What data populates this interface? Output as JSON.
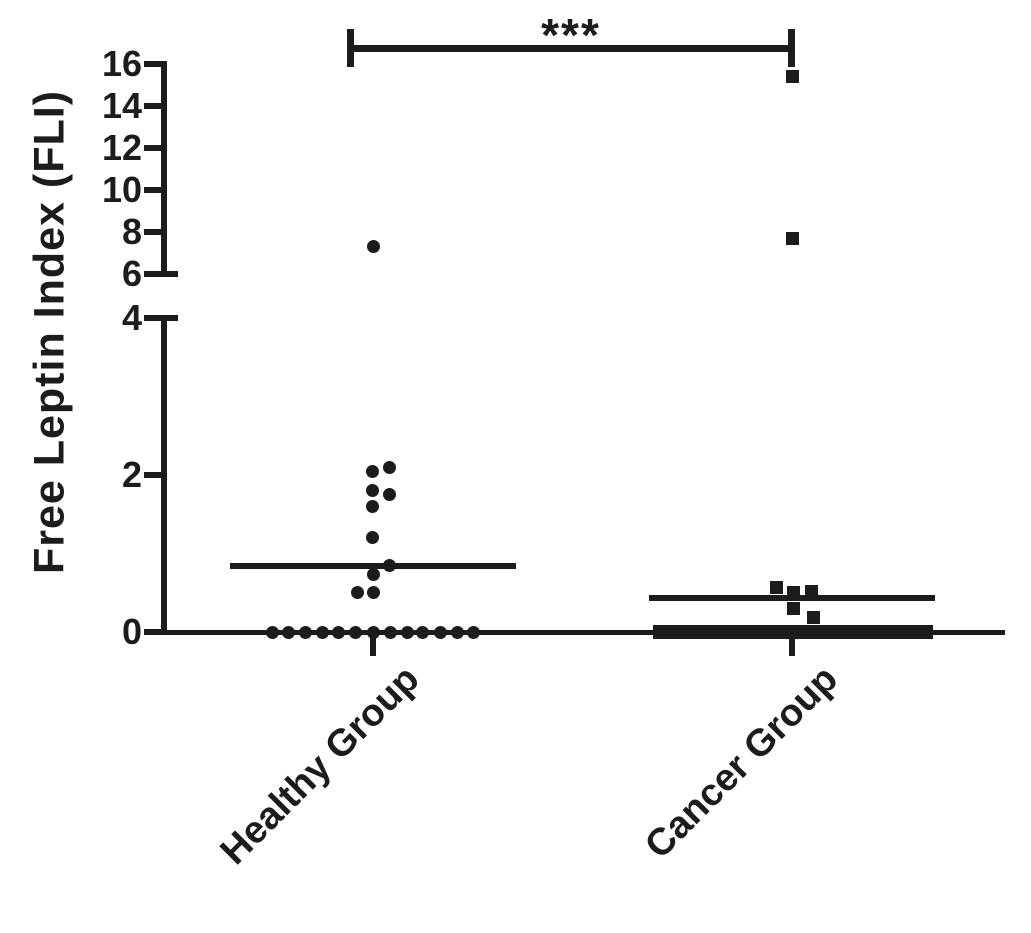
{
  "figure": {
    "background": "#ffffff",
    "ink": "#1c1c1c"
  },
  "chart_data": {
    "type": "scatter",
    "title": "",
    "xlabel": "",
    "ylabel": "Free Leptin Index (FLI)",
    "categories": [
      "Healthy Group",
      "Cancer Group"
    ],
    "y_axis": {
      "upper_ticks": [
        16,
        14,
        12,
        10,
        8,
        6
      ],
      "lower_ticks": [
        4,
        2,
        0
      ],
      "axis_break_between": [
        4,
        6
      ],
      "lower_range": [
        0,
        4
      ],
      "upper_range": [
        6,
        16.3
      ],
      "grid": "off"
    },
    "significance": {
      "label": "***",
      "between": [
        "Healthy Group",
        "Cancer Group"
      ]
    },
    "legend": "none",
    "series": [
      {
        "name": "Healthy Group",
        "marker": "circle",
        "mean_line": 0.84,
        "points": [
          {
            "v": 7.3,
            "dx": 0
          },
          {
            "v": 2.1,
            "dx": 16
          },
          {
            "v": 2.05,
            "dx": -1
          },
          {
            "v": 1.8,
            "dx": -1
          },
          {
            "v": 1.75,
            "dx": 16
          },
          {
            "v": 1.6,
            "dx": -1
          },
          {
            "v": 1.2,
            "dx": -1
          },
          {
            "v": 0.85,
            "dx": 16
          },
          {
            "v": 0.73,
            "dx": 0
          },
          {
            "v": 0.5,
            "dx": -16
          },
          {
            "v": 0.5,
            "dx": 0
          },
          {
            "v": 0,
            "dx": -101
          },
          {
            "v": 0,
            "dx": -85
          },
          {
            "v": 0,
            "dx": -68
          },
          {
            "v": 0,
            "dx": -51
          },
          {
            "v": 0,
            "dx": -35
          },
          {
            "v": 0,
            "dx": -18
          },
          {
            "v": 0,
            "dx": 0
          },
          {
            "v": 0,
            "dx": 17
          },
          {
            "v": 0,
            "dx": 34
          },
          {
            "v": 0,
            "dx": 49
          },
          {
            "v": 0,
            "dx": 67
          },
          {
            "v": 0,
            "dx": 84
          },
          {
            "v": 0,
            "dx": 100
          }
        ]
      },
      {
        "name": "Cancer Group",
        "marker": "square",
        "mean_line": 0.43,
        "points": [
          {
            "v": 15.4,
            "dx": 0
          },
          {
            "v": 7.7,
            "dx": 0
          },
          {
            "v": 0.57,
            "dx": -16
          },
          {
            "v": 0.52,
            "dx": 19
          },
          {
            "v": 0.5,
            "dx": 1
          },
          {
            "v": 0.3,
            "dx": 1
          },
          {
            "v": 0.18,
            "dx": 21
          }
        ],
        "zero_band": {
          "value": 0,
          "dx_start": -139,
          "dx_end": 141,
          "note": "many overlapping points at 0 rendered as a solid thick band"
        }
      }
    ]
  }
}
